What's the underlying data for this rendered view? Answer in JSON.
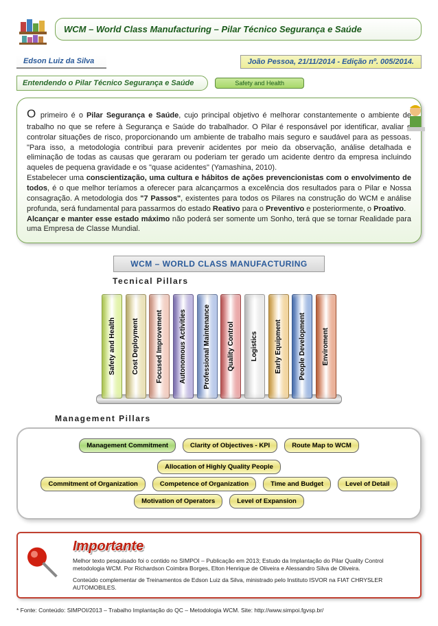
{
  "header": {
    "title": "WCM – World Class Manufacturing – Pilar Técnico Segurança e Saúde"
  },
  "author": "Edson Luiz da Silva",
  "edition": "João Pessoa, 21/11/2014 - Edição nº. 005/2014.",
  "section_label": "Entendendo o Pilar Técnico Segurança e Saúde",
  "safety_badge": "Safety and Health",
  "intro": {
    "p1a": "O ",
    "p1b": "primeiro é o ",
    "p1bold": "Pilar Segurança e Saúde",
    "p1c": ", cujo principal objetivo é melhorar constantemente o ambiente de trabalho no que se refere à Segurança e Saúde do trabalhador. O Pilar é responsável por identificar, avaliar e controlar situações de risco, proporcionando um ambiente de trabalho mais seguro e saudável para as pessoas. \"Para isso, a metodologia contribui para prevenir acidentes por meio da observação, análise detalhada e eliminação de todas as causas que geraram ou poderiam ter gerado um acidente dentro da empresa incluindo aqueles de pequena gravidade e os \"quase acidentes\" (Yamashina, 2010).",
    "p2a": "Estabelecer uma ",
    "p2bold": "conscientização, uma cultura e hábitos de ações prevencionistas com o envolvimento de todos",
    "p2b": ", é o que melhor teríamos a oferecer para alcançarmos a excelência dos resultados para o Pilar e Nossa consagração. A metodologia dos ",
    "p2bold2": "\"7 Passos\"",
    "p2c": ", existentes para todos os Pilares na construção do WCM e análise profunda, será fundamental para passarmos do estado ",
    "p2bold3": "Reativo",
    "p2d": " para o ",
    "p2bold4": "Preventivo",
    "p2e": " e posteriormente, o ",
    "p2bold5": "Proativo",
    "p2f": ".",
    "p3a": "Alcançar e manter esse estado máximo",
    "p3b": " não poderá ser somente um Sonho, terá que se tornar Realidade para uma Empresa de Classe Mundial."
  },
  "wcm_title": "WCM – WORLD CLASS MANUFACTURING",
  "tech_label": "Tecnical Pillars",
  "pillars": [
    {
      "label": "Safety and Health",
      "color": "#c8e858"
    },
    {
      "label": "Cost Deployment",
      "color": "#d8c878"
    },
    {
      "label": "Focused Improvement",
      "color": "#e8a088"
    },
    {
      "label": "Autonomous Activities",
      "color": "#8878c8"
    },
    {
      "label": "Professional Maintenance",
      "color": "#7898d8"
    },
    {
      "label": "Quality Control",
      "color": "#d85858"
    },
    {
      "label": "Logistics",
      "color": "#d8d8d8"
    },
    {
      "label": "Early Equipment",
      "color": "#e8b048"
    },
    {
      "label": "People Development",
      "color": "#4878c8"
    },
    {
      "label": "Enviroment",
      "color": "#d86838"
    }
  ],
  "mgmt_label": "Management Pillars",
  "mgmt": {
    "row1": [
      {
        "t": "Management Commitment",
        "c": "mg-green"
      },
      {
        "t": "Clarity of Objectives - KPI",
        "c": "mg-yel"
      },
      {
        "t": "Route Map to WCM",
        "c": "mg-yel"
      },
      {
        "t": "Allocation of Highly Quality People",
        "c": "mg-yel"
      }
    ],
    "row2": [
      {
        "t": "Commitment of Organization",
        "c": "mg-yel"
      },
      {
        "t": "Competence of Organization",
        "c": "mg-yel"
      },
      {
        "t": "Time and Budget",
        "c": "mg-yel"
      },
      {
        "t": "Level of Detail",
        "c": "mg-yel"
      }
    ],
    "row3": [
      {
        "t": "Motivation of Operators",
        "c": "mg-yel"
      },
      {
        "t": "Level of Expansion",
        "c": "mg-yel"
      }
    ]
  },
  "importante": {
    "head": "Importante",
    "l1": "Melhor texto pesquisado foi o contido no SIMPOI – Publicação em 2013; Estudo da Implantação do Pilar Quality Control metodologia WCM. Por Richardson Coimbra Borges, Elton Henrique de Oliveira e Alessandro Silva de Oliveira.",
    "l2": "Conteúdo complementar de Treinamentos de Edson Luiz da Silva, ministrado pelo Instituto ISVOR na FIAT CHRYSLER AUTOMOBILES."
  },
  "fonte": "* Fonte: Conteúdo: SIMPOI/2013 – Trabalho Implantação do QC – Metodologia WCM. Site: http://www.simpoi.fgvsp.br/"
}
